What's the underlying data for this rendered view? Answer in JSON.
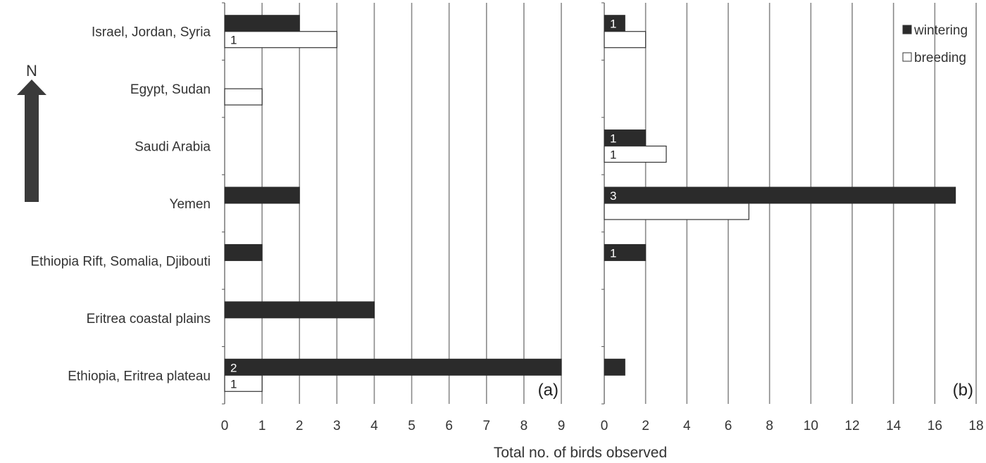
{
  "north_label": "N",
  "xlabel": "Total no. of birds observed",
  "colors": {
    "wintering": "#2b2b2b",
    "breeding": "#ffffff",
    "grid": "#8a8a8a",
    "arrow": "#3a3a3a"
  },
  "chart_data": [
    {
      "type": "bar",
      "orientation": "horizontal",
      "panel_label": "(a)",
      "categories": [
        "Israel, Jordan, Syria",
        "Egypt, Sudan",
        "Saudi Arabia",
        "Yemen",
        "Ethiopia Rift, Somalia, Djibouti",
        "Eritrea coastal plains",
        "Ethiopia, Eritrea plateau"
      ],
      "xlim": [
        0,
        9
      ],
      "xticks": [
        "0",
        "1",
        "2",
        "3",
        "4",
        "5",
        "6",
        "7",
        "8",
        "9"
      ],
      "series": [
        {
          "name": "wintering",
          "values": [
            2,
            0,
            0,
            2,
            1,
            4,
            9
          ],
          "labels": [
            "",
            "",
            "",
            "",
            "",
            "",
            "2"
          ]
        },
        {
          "name": "breeding",
          "values": [
            3,
            1,
            0,
            0,
            0,
            0,
            1
          ],
          "labels": [
            "1",
            "",
            "",
            "",
            "",
            "",
            "1"
          ]
        }
      ],
      "grid": true
    },
    {
      "type": "bar",
      "orientation": "horizontal",
      "panel_label": "(b)",
      "categories": [
        "Israel, Jordan, Syria",
        "Egypt, Sudan",
        "Saudi Arabia",
        "Yemen",
        "Ethiopia Rift, Somalia, Djibouti",
        "Eritrea coastal plains",
        "Ethiopia, Eritrea plateau"
      ],
      "xlim": [
        0,
        18
      ],
      "xticks": [
        "0",
        "2",
        "4",
        "6",
        "8",
        "10",
        "12",
        "14",
        "16",
        "18"
      ],
      "series": [
        {
          "name": "wintering",
          "values": [
            1,
            0,
            2,
            17,
            2,
            0,
            1
          ],
          "labels": [
            "1",
            "",
            "1",
            "3",
            "1",
            "",
            ""
          ]
        },
        {
          "name": "breeding",
          "values": [
            2,
            0,
            3,
            7,
            0,
            0,
            0
          ],
          "labels": [
            "",
            "",
            "1",
            "",
            "",
            "",
            ""
          ]
        }
      ],
      "grid": true,
      "legend": {
        "position": "top-right",
        "entries": [
          "wintering",
          "breeding"
        ]
      }
    }
  ]
}
